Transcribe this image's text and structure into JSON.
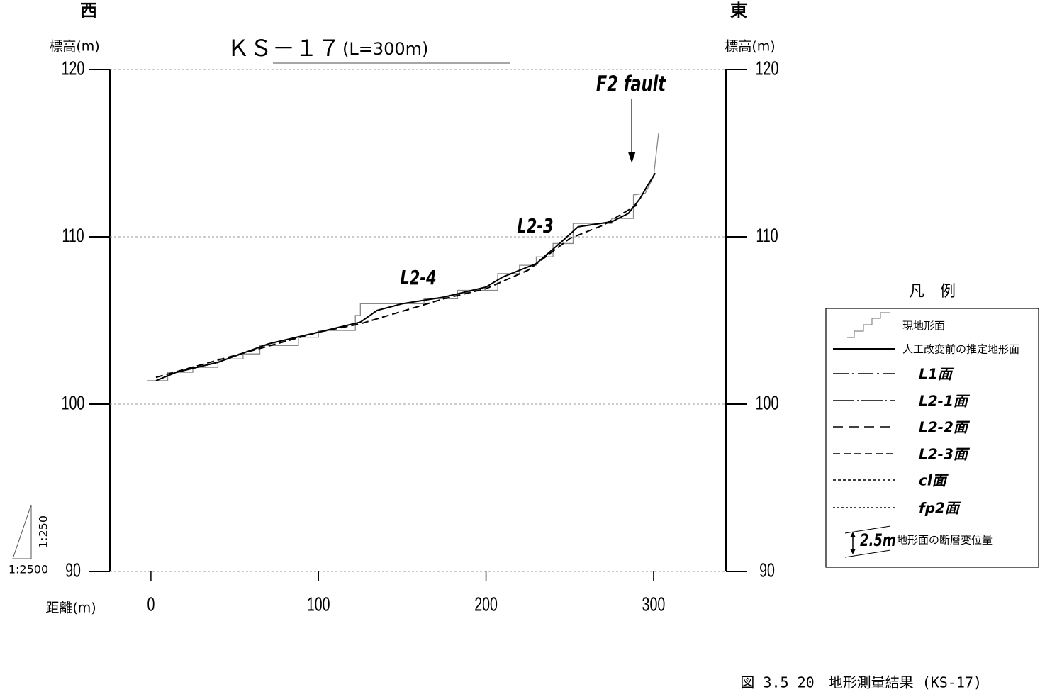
{
  "chart_data": {
    "type": "line",
    "title": "ＫＳ－１７",
    "subtitle": "(L=300m)",
    "west_label": "西",
    "east_label": "東",
    "y_label": "標高(m)",
    "y2_label": "標高(m)",
    "x_label": "距離(m)",
    "vertical_scale": "1:250",
    "horizontal_scale": "1:2500",
    "annotations": [
      "F2 fault",
      "L2-4",
      "L2-3"
    ],
    "xlim": [
      -24.5,
      343.2
    ],
    "ylim": [
      90,
      120
    ],
    "xticks": [
      0,
      100,
      200,
      300
    ],
    "yticks": [
      90,
      100,
      110,
      120
    ],
    "grid": true,
    "series": [
      {
        "name": "現地形面",
        "color": "#888888",
        "dash": "none",
        "x": [
          -2,
          10,
          10,
          25,
          25,
          40,
          40,
          55,
          55,
          65,
          65,
          88,
          88,
          100,
          100,
          122,
          122,
          125,
          125,
          163,
          163,
          183,
          183,
          207,
          207,
          220,
          220,
          230,
          230,
          240,
          240,
          252,
          252,
          275,
          275,
          288,
          288,
          295,
          300,
          303
        ],
        "values": [
          101.4,
          101.4,
          101.9,
          101.9,
          102.2,
          102.2,
          102.7,
          102.7,
          103.0,
          103.0,
          103.5,
          103.5,
          104.0,
          104.0,
          104.4,
          104.4,
          105.3,
          105.3,
          106.0,
          106.0,
          106.3,
          106.3,
          106.8,
          106.8,
          107.8,
          107.8,
          108.3,
          108.3,
          108.8,
          108.8,
          109.6,
          109.6,
          110.8,
          110.8,
          111.1,
          111.1,
          112.5,
          112.6,
          113.6,
          116.2
        ]
      },
      {
        "name": "人工改変前の推定地形面",
        "color": "#000000",
        "dash": "none",
        "x": [
          3,
          15,
          40,
          70,
          100,
          125,
          135,
          150,
          175,
          200,
          210,
          230,
          245,
          255,
          275,
          285,
          292,
          296,
          301
        ],
        "values": [
          101.4,
          101.9,
          102.5,
          103.6,
          104.3,
          104.9,
          105.6,
          106.0,
          106.4,
          107.0,
          107.6,
          108.4,
          109.7,
          110.6,
          110.9,
          111.4,
          112.3,
          113.0,
          113.8
        ]
      },
      {
        "name": "L2-3面",
        "color": "#000000",
        "dash": "10,5",
        "x": [
          3,
          100,
          125,
          175,
          200,
          225,
          250,
          270,
          290
        ],
        "values": [
          101.6,
          104.3,
          104.8,
          106.3,
          106.9,
          108.0,
          109.9,
          110.7,
          111.9
        ]
      }
    ],
    "legend_title": "凡　例",
    "other_legend_entries": [
      {
        "name": "L1面",
        "dash": "22,5,3,5"
      },
      {
        "name": "L2-1面",
        "dash": "30,4,2,4"
      },
      {
        "name": "L2-2面",
        "dash": "14,8"
      },
      {
        "name": "cl面",
        "dash": "4,3"
      },
      {
        "name": "fp2面",
        "dash": "3,3"
      }
    ],
    "displacement_legend": {
      "amount": "2.5m",
      "label": "地形面の断層変位量"
    },
    "caption": "図 3.5 20　地形測量結果 (KS-17)"
  }
}
